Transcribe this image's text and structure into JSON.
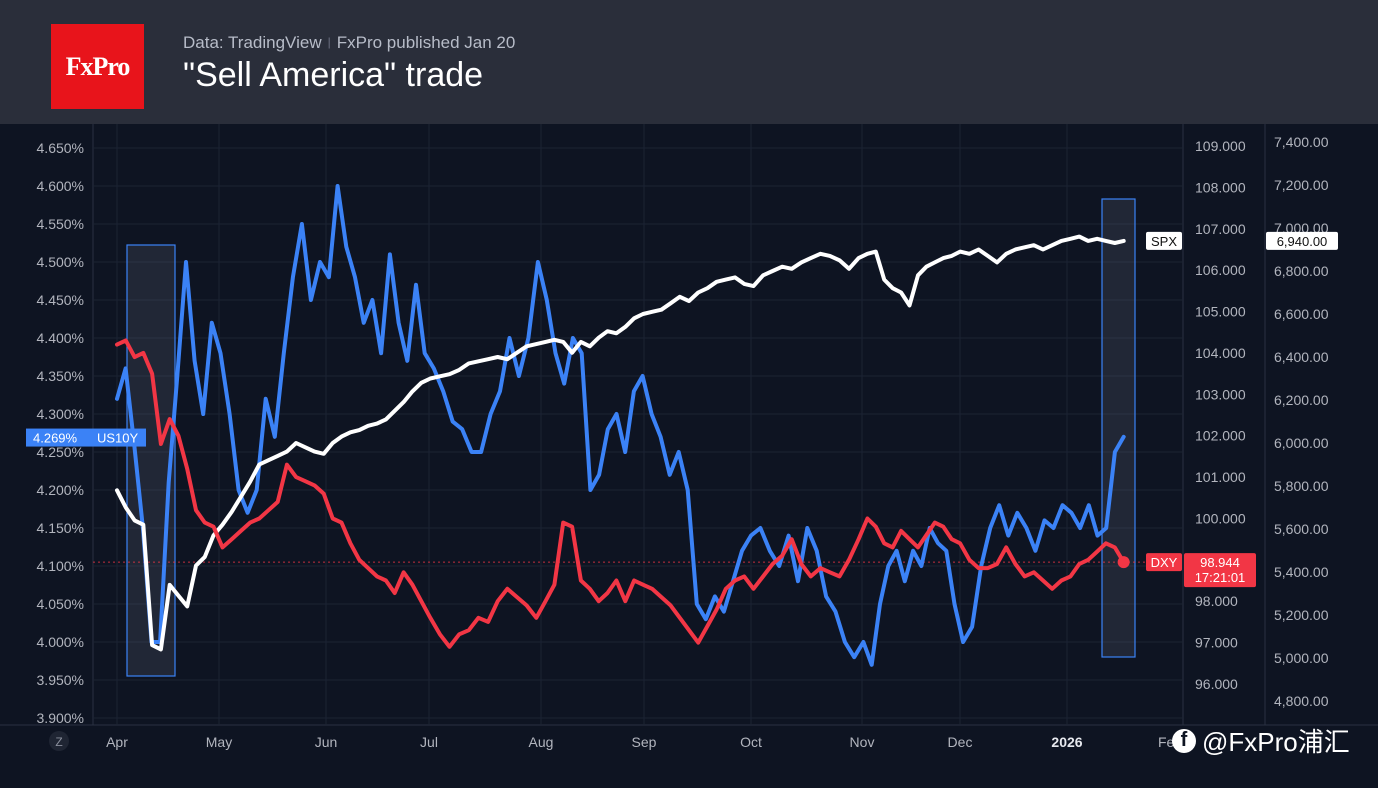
{
  "header": {
    "logo_text": "FxPro",
    "source": "Data: TradingView",
    "publisher": "FxPro published Jan 20",
    "title": "\"Sell America\" trade"
  },
  "watermark": {
    "platform_icon": "facebook-icon",
    "handle": "@FxPro浦汇"
  },
  "colors": {
    "us10y": "#3b82f6",
    "dxy": "#f23645",
    "spx": "#ffffff",
    "background": "#0e1422",
    "header": "#2a2e3a"
  },
  "chart_data": {
    "type": "line",
    "x_tick_labels": [
      "Apr",
      "May",
      "Jun",
      "Jul",
      "Aug",
      "Sep",
      "Oct",
      "Nov",
      "Dec",
      "2026",
      "Feb"
    ],
    "left_axis": {
      "name": "US10Y",
      "min": 3.9,
      "max": 4.675,
      "ticks": [
        "3.900%",
        "3.950%",
        "4.000%",
        "4.050%",
        "4.100%",
        "4.150%",
        "4.200%",
        "4.250%",
        "4.300%",
        "4.350%",
        "4.400%",
        "4.450%",
        "4.500%",
        "4.550%",
        "4.600%",
        "4.650%"
      ]
    },
    "mid_axis": {
      "name": "DXY",
      "min": 95.55,
      "max": 109.55,
      "ticks": [
        "96.000",
        "97.000",
        "98.000",
        "99.000",
        "100.000",
        "101.000",
        "102.000",
        "103.000",
        "104.000",
        "105.000",
        "106.000",
        "107.000",
        "108.000",
        "109.000"
      ]
    },
    "right_axis": {
      "name": "SPX",
      "min": 4730,
      "max": 7460,
      "ticks": [
        "4,800.00",
        "5,000.00",
        "5,200.00",
        "5,400.00",
        "5,600.00",
        "5,800.00",
        "6,000.00",
        "6,200.00",
        "6,400.00",
        "6,600.00",
        "6,800.00",
        "7,000.00",
        "7,200.00",
        "7,400.00"
      ]
    },
    "series": [
      {
        "name": "US10Y",
        "axis": "left",
        "x_start": 0.0,
        "x_end": 9.55,
        "values": [
          4.32,
          4.36,
          4.26,
          4.15,
          4.0,
          4.0,
          4.21,
          4.35,
          4.5,
          4.37,
          4.3,
          4.42,
          4.38,
          4.3,
          4.2,
          4.17,
          4.2,
          4.32,
          4.27,
          4.38,
          4.48,
          4.55,
          4.45,
          4.5,
          4.48,
          4.6,
          4.52,
          4.48,
          4.42,
          4.45,
          4.38,
          4.51,
          4.42,
          4.37,
          4.47,
          4.38,
          4.36,
          4.33,
          4.29,
          4.28,
          4.25,
          4.25,
          4.3,
          4.33,
          4.4,
          4.35,
          4.4,
          4.5,
          4.45,
          4.38,
          4.34,
          4.4,
          4.38,
          4.2,
          4.22,
          4.28,
          4.3,
          4.25,
          4.33,
          4.35,
          4.3,
          4.27,
          4.22,
          4.25,
          4.2,
          4.05,
          4.03,
          4.06,
          4.04,
          4.08,
          4.12,
          4.14,
          4.15,
          4.12,
          4.1,
          4.14,
          4.08,
          4.15,
          4.12,
          4.06,
          4.04,
          4.0,
          3.98,
          4.0,
          3.97,
          4.05,
          4.1,
          4.12,
          4.08,
          4.12,
          4.1,
          4.15,
          4.13,
          4.12,
          4.05,
          4.0,
          4.02,
          4.1,
          4.15,
          4.18,
          4.14,
          4.17,
          4.15,
          4.12,
          4.16,
          4.15,
          4.18,
          4.17,
          4.15,
          4.18,
          4.14,
          4.15,
          4.25,
          4.27
        ]
      },
      {
        "name": "DXY",
        "axis": "mid",
        "x_start": 0.0,
        "x_end": 9.55,
        "values": [
          104.2,
          104.3,
          103.9,
          104.0,
          103.5,
          101.8,
          102.4,
          102.0,
          101.2,
          100.2,
          99.9,
          99.8,
          99.3,
          99.5,
          99.7,
          99.9,
          100.0,
          100.2,
          100.4,
          101.3,
          101.0,
          100.9,
          100.8,
          100.6,
          100.0,
          99.9,
          99.4,
          99.0,
          98.8,
          98.6,
          98.5,
          98.2,
          98.7,
          98.4,
          98.0,
          97.6,
          97.2,
          96.9,
          97.2,
          97.3,
          97.6,
          97.5,
          98.0,
          98.3,
          98.1,
          97.9,
          97.6,
          98.0,
          98.4,
          99.9,
          99.8,
          98.5,
          98.3,
          98.0,
          98.2,
          98.5,
          98.0,
          98.5,
          98.4,
          98.3,
          98.1,
          97.9,
          97.6,
          97.3,
          97.0,
          97.4,
          97.8,
          98.3,
          98.5,
          98.6,
          98.3,
          98.6,
          98.9,
          99.1,
          99.5,
          98.9,
          98.6,
          98.8,
          98.7,
          98.6,
          99.0,
          99.5,
          100.0,
          99.8,
          99.4,
          99.3,
          99.7,
          99.5,
          99.3,
          99.6,
          99.9,
          99.8,
          99.5,
          99.4,
          99.0,
          98.8,
          98.8,
          98.9,
          99.3,
          98.9,
          98.6,
          98.7,
          98.5,
          98.3,
          98.5,
          98.6,
          98.9,
          99.0,
          99.2,
          99.4,
          99.3,
          98.944
        ]
      },
      {
        "name": "SPX",
        "axis": "right",
        "x_start": 0.0,
        "x_end": 9.55,
        "values": [
          5780,
          5700,
          5640,
          5620,
          5060,
          5040,
          5340,
          5290,
          5240,
          5430,
          5470,
          5570,
          5620,
          5680,
          5750,
          5820,
          5900,
          5920,
          5940,
          5960,
          6000,
          5980,
          5960,
          5950,
          6000,
          6030,
          6050,
          6060,
          6080,
          6090,
          6110,
          6150,
          6190,
          6240,
          6280,
          6300,
          6310,
          6320,
          6340,
          6370,
          6380,
          6390,
          6400,
          6390,
          6420,
          6450,
          6460,
          6470,
          6480,
          6470,
          6420,
          6470,
          6450,
          6490,
          6520,
          6510,
          6540,
          6580,
          6600,
          6610,
          6620,
          6650,
          6680,
          6660,
          6700,
          6720,
          6750,
          6760,
          6770,
          6740,
          6730,
          6780,
          6800,
          6820,
          6810,
          6840,
          6860,
          6880,
          6870,
          6850,
          6810,
          6860,
          6880,
          6890,
          6760,
          6720,
          6700,
          6640,
          6780,
          6820,
          6840,
          6860,
          6870,
          6890,
          6880,
          6900,
          6870,
          6840,
          6880,
          6900,
          6910,
          6920,
          6900,
          6920,
          6940,
          6950,
          6960,
          6940,
          6950,
          6940,
          6930,
          6940
        ]
      }
    ],
    "last_values": {
      "US10Y": "4.269%",
      "DXY": "98.944",
      "DXY_timer": "17:21:01",
      "SPX": "6,940.00"
    },
    "annotations": [
      "April highlight box",
      "January highlight box"
    ]
  }
}
